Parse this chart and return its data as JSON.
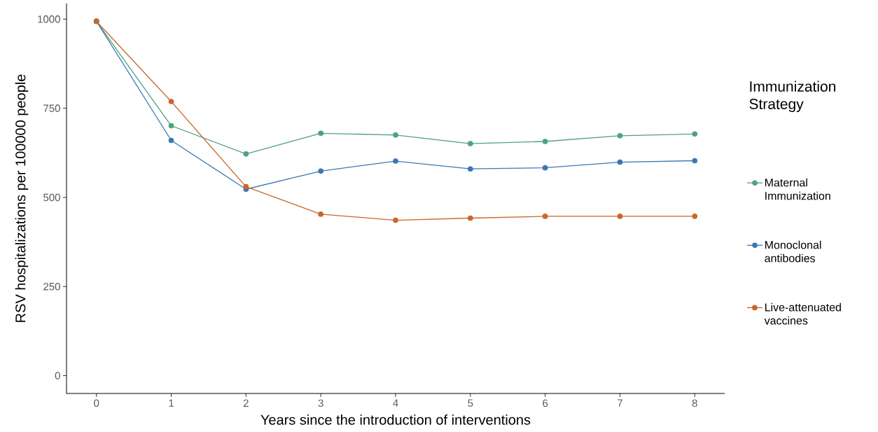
{
  "chart_data": {
    "type": "line",
    "xlabel": "Years since the introduction of interventions",
    "ylabel": "RSV hospitalizations per 100000 people",
    "legend_title": "Immunization Strategy",
    "x": [
      0,
      1,
      2,
      3,
      4,
      5,
      6,
      7,
      8
    ],
    "series": [
      {
        "name": "Maternal Immunization",
        "color": "#4ea27f",
        "values": [
          994,
          701,
          622,
          680,
          675,
          651,
          657,
          673,
          678
        ]
      },
      {
        "name": "Monoclonal antibodies",
        "color": "#3a78b3",
        "values": [
          994,
          660,
          523,
          574,
          602,
          580,
          583,
          599,
          603
        ]
      },
      {
        "name": "Live-attenuated vaccines",
        "color": "#c8672c",
        "values": [
          994,
          769,
          530,
          453,
          436,
          442,
          447,
          447,
          447
        ]
      }
    ],
    "xlim": [
      -0.4,
      8.4
    ],
    "ylim": [
      -50,
      1044
    ],
    "xticks": [
      0,
      1,
      2,
      3,
      4,
      5,
      6,
      7,
      8
    ],
    "yticks": [
      0,
      250,
      500,
      750,
      1000
    ],
    "grid": false,
    "legend": "right",
    "marker": "circle",
    "line_style": "solid"
  }
}
